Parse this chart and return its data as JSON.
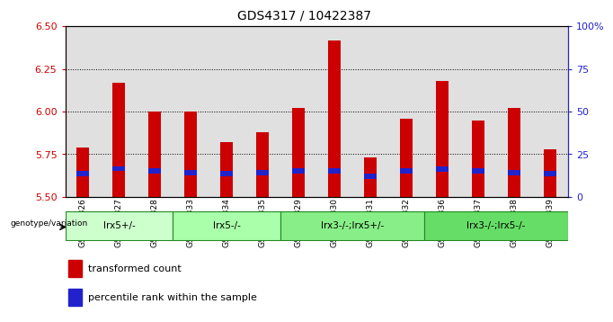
{
  "title": "GDS4317 / 10422387",
  "samples": [
    "GSM950326",
    "GSM950327",
    "GSM950328",
    "GSM950333",
    "GSM950334",
    "GSM950335",
    "GSM950329",
    "GSM950330",
    "GSM950331",
    "GSM950332",
    "GSM950336",
    "GSM950337",
    "GSM950338",
    "GSM950339"
  ],
  "transformed_count": [
    5.79,
    6.17,
    6.0,
    6.0,
    5.82,
    5.88,
    6.02,
    6.42,
    5.73,
    5.96,
    6.18,
    5.95,
    6.02,
    5.78
  ],
  "percentile_rank_y": [
    5.635,
    5.665,
    5.652,
    5.642,
    5.635,
    5.642,
    5.652,
    5.652,
    5.622,
    5.652,
    5.662,
    5.652,
    5.642,
    5.635
  ],
  "groups": [
    {
      "label": "lrx5+/-",
      "start": 0,
      "end": 3
    },
    {
      "label": "lrx5-/-",
      "start": 3,
      "end": 6
    },
    {
      "label": "lrx3-/-;lrx5+/-",
      "start": 6,
      "end": 10
    },
    {
      "label": "lrx3-/-;lrx5-/-",
      "start": 10,
      "end": 14
    }
  ],
  "group_colors": [
    "#ccffcc",
    "#aaffaa",
    "#88ee88",
    "#66dd66"
  ],
  "group_edge_color": "#228822",
  "ylim_left": [
    5.5,
    6.5
  ],
  "ylim_right": [
    0,
    100
  ],
  "bar_color": "#cc0000",
  "percentile_color": "#2222cc",
  "bar_width": 0.35,
  "percentile_bar_height": 0.03,
  "left_tick_color": "#cc0000",
  "right_tick_color": "#2222cc",
  "group_label_row_label": "genotype/variation",
  "legend_items": [
    {
      "label": "transformed count",
      "color": "#cc0000"
    },
    {
      "label": "percentile rank within the sample",
      "color": "#2222cc"
    }
  ],
  "column_bg_color": "#e0e0e0",
  "plot_bg_color": "#ffffff"
}
